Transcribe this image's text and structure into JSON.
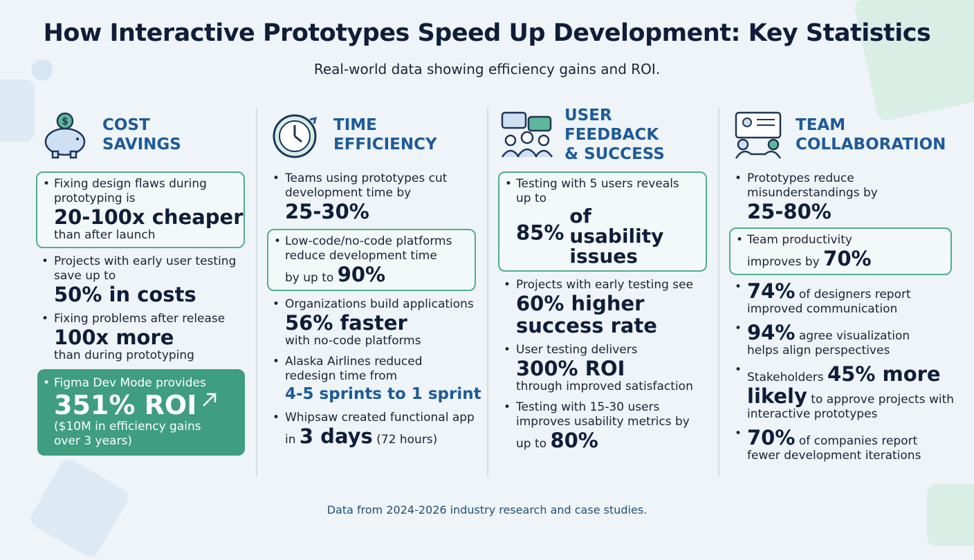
{
  "header": {
    "title": "How Interactive Prototypes Speed Up Development: Key Statistics",
    "subtitle": "Real-world data showing efficiency gains and ROI."
  },
  "columns": [
    {
      "title": [
        "COST",
        "SAVINGS"
      ],
      "items": [
        {
          "box": "outline",
          "lines": [
            [
              {
                "text": "Fixing design flaws during"
              }
            ],
            [
              {
                "text": "prototyping is"
              }
            ],
            [
              {
                "stat": "20-100x cheaper"
              }
            ],
            [
              {
                "text": "than after launch"
              }
            ]
          ]
        },
        {
          "lines": [
            [
              {
                "text": "Projects with early user testing"
              }
            ],
            [
              {
                "text": "save up to"
              }
            ],
            [
              {
                "stat": "50% in costs"
              }
            ]
          ]
        },
        {
          "lines": [
            [
              {
                "text": "Fixing problems after release"
              }
            ],
            [
              {
                "stat": "100x more"
              }
            ],
            [
              {
                "text": "than during prototyping"
              }
            ]
          ]
        },
        {
          "box": "filled",
          "lines": [
            [
              {
                "text": "Figma Dev Mode provides"
              }
            ],
            [
              {
                "stat": "351% ROI"
              }
            ],
            [
              {
                "text": "($10M in efficiency gains"
              }
            ],
            [
              {
                "text": "over 3 years)"
              }
            ]
          ]
        }
      ]
    },
    {
      "title": [
        "TIME",
        "EFFICIENCY"
      ],
      "items": [
        {
          "lines": [
            [
              {
                "text": "Teams using prototypes cut"
              }
            ],
            [
              {
                "text": "development time by"
              }
            ],
            [
              {
                "stat": "25-30%"
              }
            ]
          ]
        },
        {
          "box": "outline",
          "lines": [
            [
              {
                "text": "Low-code/no-code platforms"
              }
            ],
            [
              {
                "text": "reduce development time"
              }
            ],
            [
              {
                "text": "by up to "
              },
              {
                "stat": "90%"
              }
            ]
          ]
        },
        {
          "lines": [
            [
              {
                "text": "Organizations build applications"
              }
            ],
            [
              {
                "stat": "56% faster"
              }
            ],
            [
              {
                "text": "with no-code platforms"
              }
            ]
          ]
        },
        {
          "lines": [
            [
              {
                "text": "Alaska Airlines reduced"
              }
            ],
            [
              {
                "text": "redesign time from"
              }
            ],
            [
              {
                "accent": "4-5 sprints to 1 sprint"
              }
            ]
          ]
        },
        {
          "lines": [
            [
              {
                "text": "Whipsaw created functional app"
              }
            ],
            [
              {
                "text": "in "
              },
              {
                "stat": "3 days"
              },
              {
                "text": " (72 hours)"
              }
            ]
          ]
        }
      ]
    },
    {
      "title": [
        "USER FEEDBACK",
        "& SUCCESS"
      ],
      "items": [
        {
          "box": "outline",
          "lines": [
            [
              {
                "text": "Testing with 5 users reveals"
              }
            ],
            [
              {
                "text": "up to"
              }
            ],
            [
              {
                "stat": "85%"
              },
              {
                "stack": "of usability issues"
              }
            ]
          ]
        },
        {
          "lines": [
            [
              {
                "text": "Projects with early testing see"
              }
            ],
            [
              {
                "stat": "60% higher"
              }
            ],
            [
              {
                "stat": "success rate"
              }
            ]
          ]
        },
        {
          "lines": [
            [
              {
                "text": "User testing delivers"
              }
            ],
            [
              {
                "stat": "300% ROI"
              }
            ],
            [
              {
                "text": "through improved satisfaction"
              }
            ]
          ]
        },
        {
          "lines": [
            [
              {
                "text": "Testing with 15-30 users"
              }
            ],
            [
              {
                "text": "improves usability metrics by"
              }
            ],
            [
              {
                "text": "up to "
              },
              {
                "stat": "80%"
              }
            ]
          ]
        }
      ]
    },
    {
      "title": [
        "TEAM",
        "COLLABORATION"
      ],
      "items": [
        {
          "lines": [
            [
              {
                "text": "Prototypes reduce"
              }
            ],
            [
              {
                "text": "misunderstandings by"
              }
            ],
            [
              {
                "stat": "25-80%"
              }
            ]
          ]
        },
        {
          "box": "outline",
          "lines": [
            [
              {
                "text": "Team productivity"
              }
            ],
            [
              {
                "text": "improves by "
              },
              {
                "stat": "70%"
              }
            ]
          ]
        },
        {
          "lines": [
            [
              {
                "stat": "74%"
              },
              {
                "text": " of designers report"
              }
            ],
            [
              {
                "text": "improved communication"
              }
            ]
          ]
        },
        {
          "lines": [
            [
              {
                "stat": "94%"
              },
              {
                "text": " agree visualization"
              }
            ],
            [
              {
                "text": "helps align perspectives"
              }
            ]
          ]
        },
        {
          "lines": [
            [
              {
                "text": "Stakeholders "
              },
              {
                "stat": "45% more"
              }
            ],
            [
              {
                "stat": "likely"
              },
              {
                "text": " to approve projects with"
              }
            ],
            [
              {
                "text": "interactive prototypes"
              }
            ]
          ]
        },
        {
          "lines": [
            [
              {
                "stat": "70%"
              },
              {
                "text": " of companies report"
              }
            ],
            [
              {
                "text": "fewer development iterations"
              }
            ]
          ]
        }
      ]
    }
  ],
  "footer": "Data from 2024-2026 industry research and case studies."
}
